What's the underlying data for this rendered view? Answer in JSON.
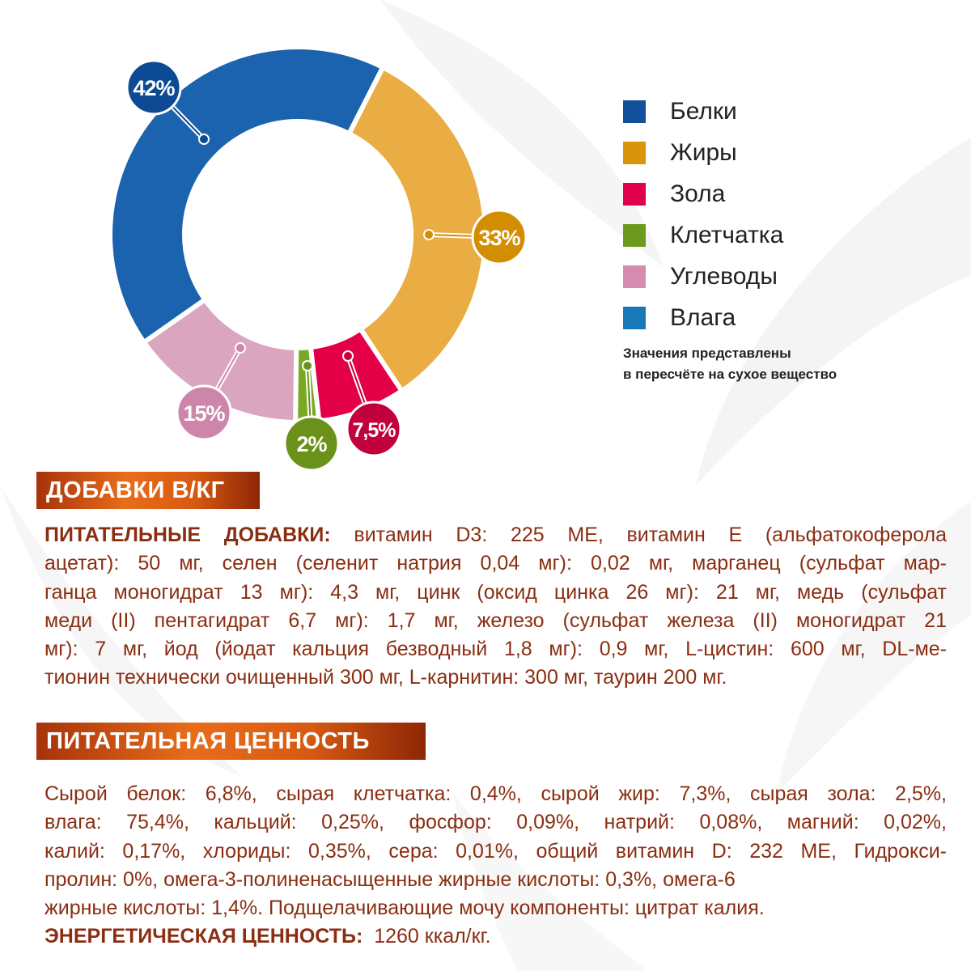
{
  "chart_data": {
    "type": "pie",
    "subtype": "donut",
    "series": [
      {
        "name": "Белки",
        "value": 42,
        "label": "42%",
        "ring_color": "#1b63ae",
        "label_color": "#0c4a93"
      },
      {
        "name": "Жиры",
        "value": 33,
        "label": "33%",
        "ring_color": "#e9ad43",
        "label_color": "#d38e00"
      },
      {
        "name": "Зола",
        "value": 7.5,
        "label": "7,5%",
        "ring_color": "#e30047",
        "label_color": "#c2003b"
      },
      {
        "name": "Клетчатка",
        "value": 2,
        "label": "2%",
        "ring_color": "#7aa823",
        "label_color": "#6a921a"
      },
      {
        "name": "Углеводы",
        "value": 15,
        "label": "15%",
        "ring_color": "#daa6bf",
        "label_color": "#cd86a9"
      }
    ],
    "legend": {
      "placement": "right",
      "items": [
        {
          "label": "Белки",
          "color": "#12509a"
        },
        {
          "label": "Жиры",
          "color": "#d9940c"
        },
        {
          "label": "Зола",
          "color": "#e0004d"
        },
        {
          "label": "Клетчатка",
          "color": "#6c9a1c"
        },
        {
          "label": "Углеводы",
          "color": "#d68cae"
        },
        {
          "label": "Влага",
          "color": "#1878b8"
        }
      ]
    },
    "note": [
      "Значения представлены",
      "в пересчёте на сухое вещество"
    ]
  },
  "additives": {
    "header": "ДОБАВКИ В/КГ",
    "lines": [
      {
        "bold": "ПИТАТЕЛЬНЫЕ ДОБАВКИ:",
        "text": " витамин D3: 225 МЕ, витамин Е (альфатокоферола"
      },
      {
        "text": "ацетат): 50 мг, селен (селенит натрия 0,04 мг): 0,02 мг, марганец (сульфат мар-"
      },
      {
        "text": "ганца моногидрат 13 мг): 4,3 мг, цинк (оксид цинка 26 мг): 21 мг, медь (сульфат"
      },
      {
        "text": "меди (II) пентагидрат 6,7 мг): 1,7 мг, железо (сульфат железа (II) моногидрат 21"
      },
      {
        "text": "мг): 7 мг, йод (йодат кальция безводный 1,8 мг): 0,9 мг, L-цистин: 600 мг, DL-ме-"
      },
      {
        "text": "тионин технически очищенный 300 мг, L-карнитин: 300 мг, таурин 200 мг."
      }
    ]
  },
  "nutrition": {
    "header": "ПИТАТЕЛЬНАЯ ЦЕННОСТЬ",
    "lines": [
      {
        "text": "Сырой белок: 6,8%, сырая клетчатка: 0,4%, сырой жир: 7,3%, сырая зола: 2,5%,"
      },
      {
        "text": "влага: 75,4%, кальций: 0,25%, фосфор: 0,09%, натрий: 0,08%, магний: 0,02%,"
      },
      {
        "text": "калий: 0,17%, хлориды: 0,35%, сера: 0,01%, общий витамин D: 232 МЕ, Гидрокси-"
      },
      {
        "text": "пролин: 0%, омега-3-полиненасыщенные жирные кислоты: 0,3%, омега-6"
      },
      {
        "text": "жирные кислоты: 1,4%. Подщелачивающие мочу компоненты: цитрат калия."
      }
    ],
    "energy_label": "ЭНЕРГЕТИЧЕСКАЯ ЦЕННОСТЬ:",
    "energy_value": "1260 ккал/кг."
  }
}
